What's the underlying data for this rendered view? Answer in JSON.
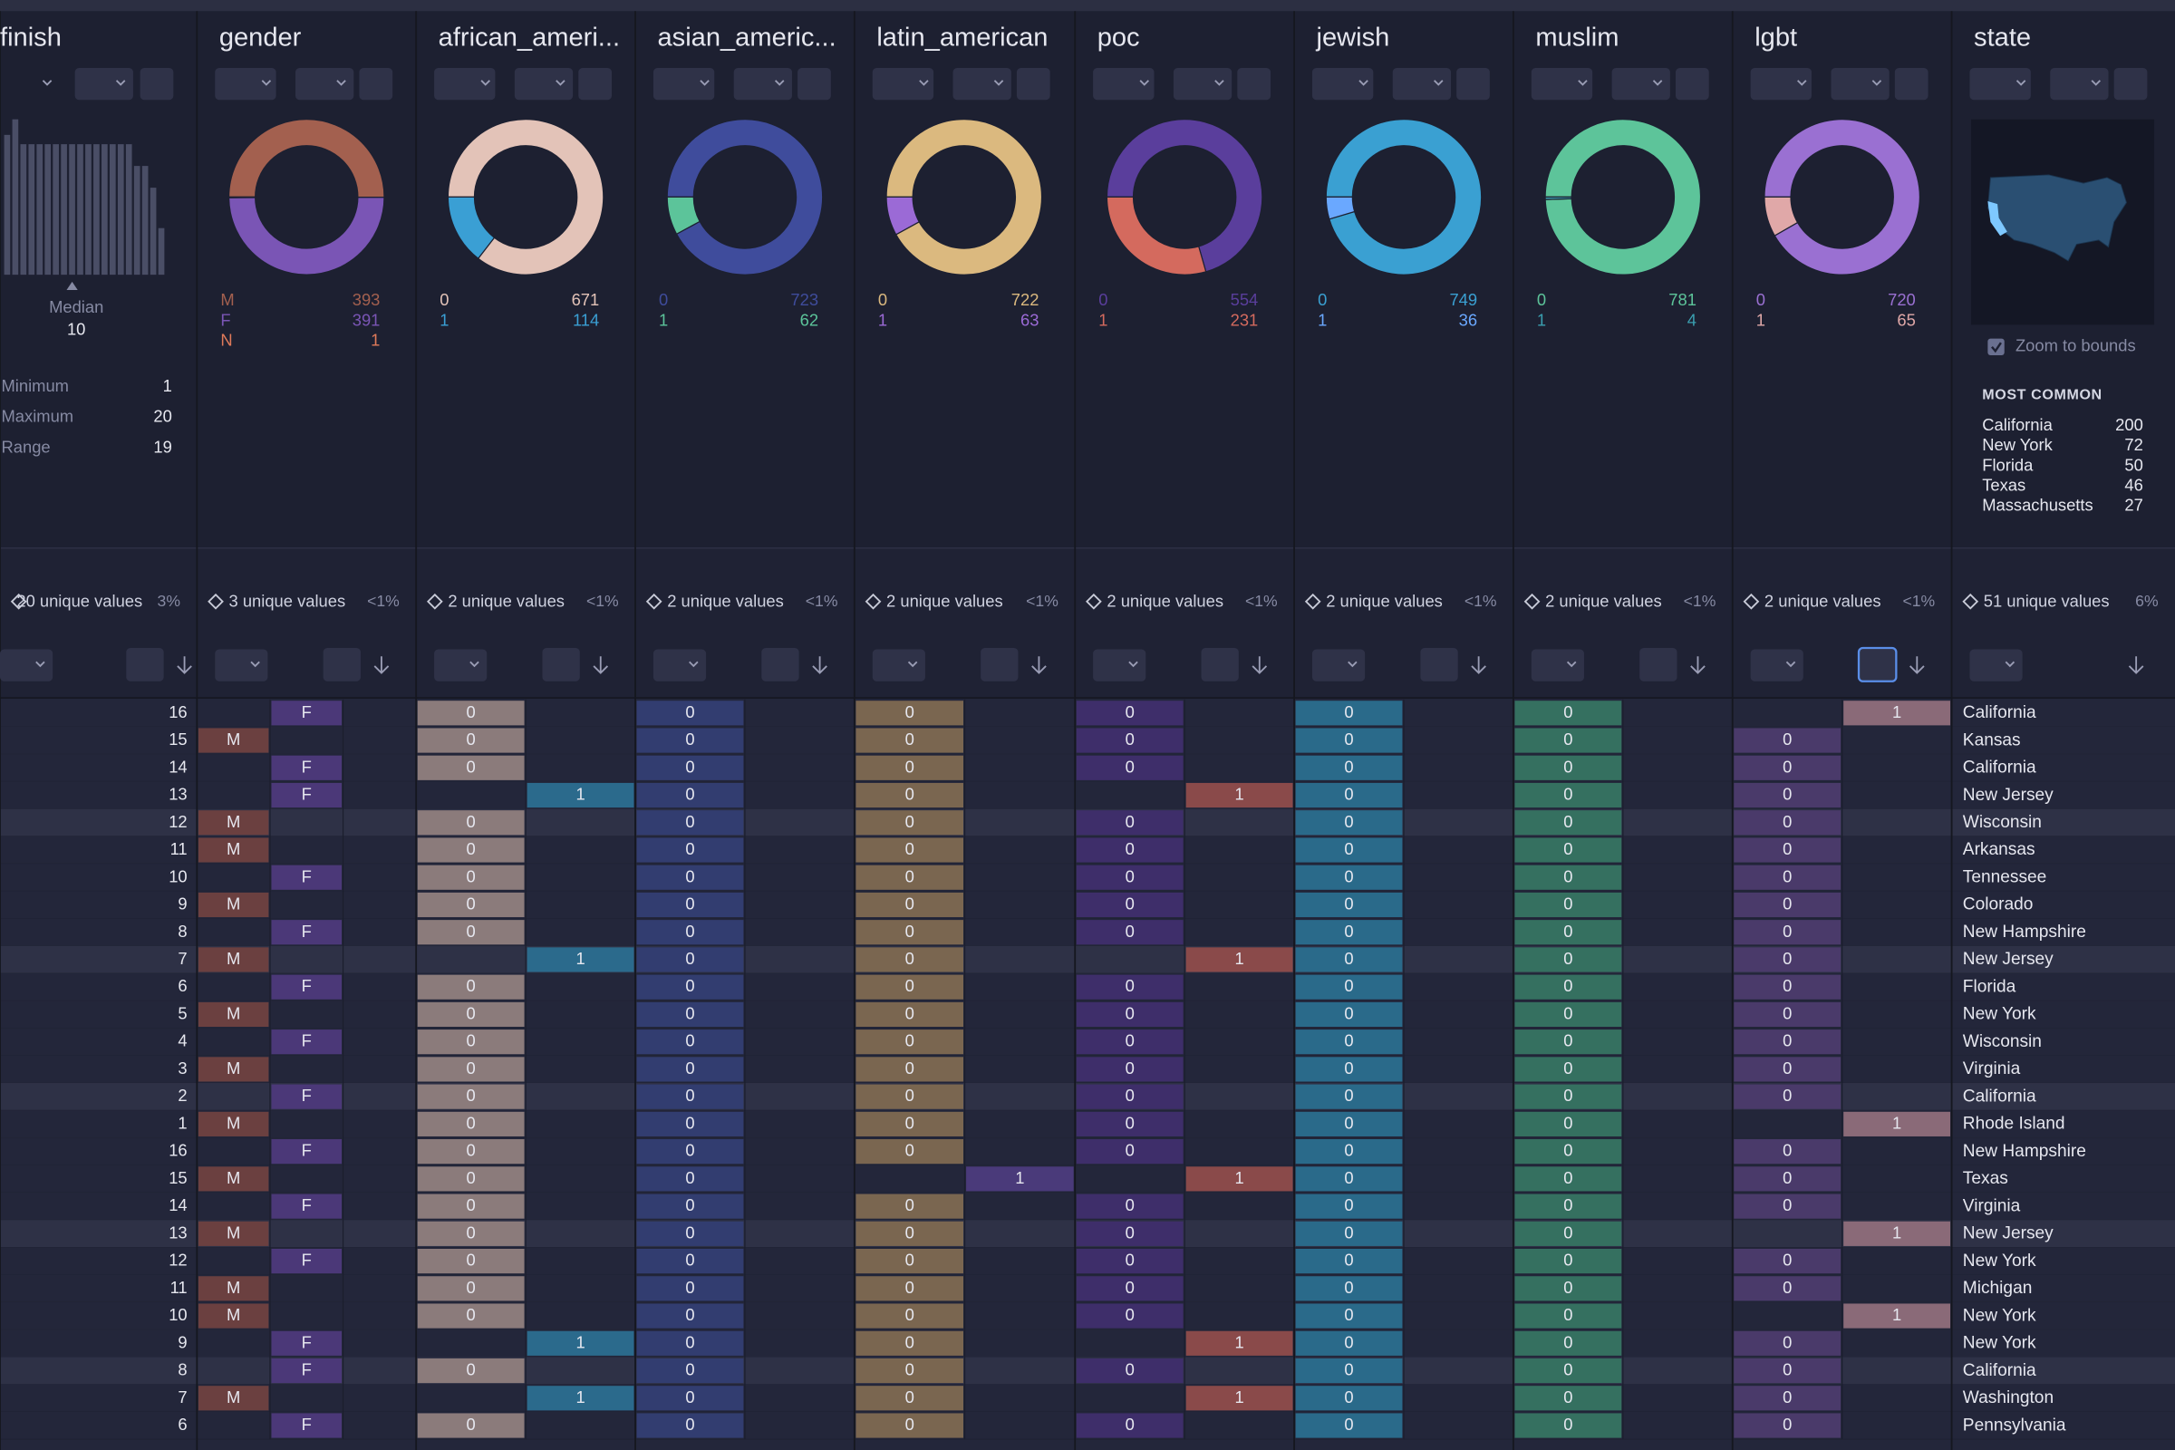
{
  "columns": [
    {
      "name": "finish",
      "histogram": [
        45,
        50,
        42,
        42,
        42,
        42,
        42,
        42,
        42,
        42,
        42,
        42,
        42,
        42,
        42,
        42,
        35,
        35,
        28,
        15
      ],
      "hist_color": "#4a4e66",
      "median_label": "Median",
      "median": 10,
      "stats": [
        {
          "label": "Minimum",
          "value": 1
        },
        {
          "label": "Maximum",
          "value": 20
        },
        {
          "label": "Range",
          "value": 19
        }
      ],
      "unique": "20 unique values",
      "pct": "3%"
    },
    {
      "name": "gender",
      "legend": [
        {
          "label": "M",
          "count": 393,
          "color": "#a3604f",
          "cell": "#6b4040"
        },
        {
          "label": "F",
          "count": 391,
          "color": "#7a55b5",
          "cell": "#4b3878"
        },
        {
          "label": "N",
          "count": 1,
          "color": "#e07a5a",
          "cell": "#8a4a3a"
        }
      ],
      "unique": "3 unique values",
      "pct": "<1%"
    },
    {
      "name": "african_ameri...",
      "legend": [
        {
          "label": 0,
          "count": 671,
          "color": "#e3c3b8",
          "cell": "#8b7b7b"
        },
        {
          "label": 1,
          "count": 114,
          "color": "#3a9fd4",
          "cell": "#2b6a8c"
        }
      ],
      "unique": "2 unique values",
      "pct": "<1%"
    },
    {
      "name": "asian_americ...",
      "legend": [
        {
          "label": 0,
          "count": 723,
          "color": "#3f4c9c",
          "cell": "#323d70"
        },
        {
          "label": 1,
          "count": 62,
          "color": "#5cc49a",
          "cell": "#2f6a58"
        }
      ],
      "unique": "2 unique values",
      "pct": "<1%"
    },
    {
      "name": "latin_american",
      "legend": [
        {
          "label": 0,
          "count": 722,
          "color": "#dbb97f",
          "cell": "#7a6650"
        },
        {
          "label": 1,
          "count": 63,
          "color": "#9b6ad6",
          "cell": "#4a3a7a"
        }
      ],
      "unique": "2 unique values",
      "pct": "<1%"
    },
    {
      "name": "poc",
      "legend": [
        {
          "label": 0,
          "count": 554,
          "color": "#5a3e9c",
          "cell": "#3e2e6a"
        },
        {
          "label": 1,
          "count": 231,
          "color": "#d46a5e",
          "cell": "#8a4a4a"
        }
      ],
      "unique": "2 unique values",
      "pct": "<1%"
    },
    {
      "name": "jewish",
      "legend": [
        {
          "label": 0,
          "count": 749,
          "color": "#3aa0d2",
          "cell": "#2a6a8a"
        },
        {
          "label": 1,
          "count": 36,
          "color": "#6aa8ff",
          "cell": "#35589a"
        }
      ],
      "unique": "2 unique values",
      "pct": "<1%"
    },
    {
      "name": "muslim",
      "legend": [
        {
          "label": 0,
          "count": 781,
          "color": "#5dc49a",
          "cell": "#357060"
        },
        {
          "label": 1,
          "count": 4,
          "color": "#3a9fb0",
          "cell": "#2a6070"
        }
      ],
      "unique": "2 unique values",
      "pct": "<1%"
    },
    {
      "name": "lgbt",
      "legend": [
        {
          "label": 0,
          "count": 720,
          "color": "#9a70d2",
          "cell": "#4a3a6a"
        },
        {
          "label": 1,
          "count": 65,
          "color": "#e0a8a8",
          "cell": "#8a6a78"
        }
      ],
      "unique": "2 unique values",
      "pct": "<1%"
    },
    {
      "name": "state",
      "zoom": "Zoom to bounds",
      "most_common_title": "MOST COMMON",
      "most_common": [
        {
          "label": "California",
          "count": 200
        },
        {
          "label": "New York",
          "count": 72
        },
        {
          "label": "Florida",
          "count": 50
        },
        {
          "label": "Texas",
          "count": 46
        },
        {
          "label": "Massachusetts",
          "count": 27
        }
      ],
      "unique": "51 unique values",
      "pct": "6%"
    }
  ],
  "rows": [
    [
      16,
      "F",
      0,
      0,
      0,
      0,
      0,
      0,
      1,
      "California"
    ],
    [
      15,
      "M",
      0,
      0,
      0,
      0,
      0,
      0,
      0,
      "Kansas"
    ],
    [
      14,
      "F",
      0,
      0,
      0,
      0,
      0,
      0,
      0,
      "California"
    ],
    [
      13,
      "F",
      1,
      0,
      0,
      1,
      0,
      0,
      0,
      "New Jersey"
    ],
    [
      12,
      "M",
      0,
      0,
      0,
      0,
      0,
      0,
      0,
      "Wisconsin"
    ],
    [
      11,
      "M",
      0,
      0,
      0,
      0,
      0,
      0,
      0,
      "Arkansas"
    ],
    [
      10,
      "F",
      0,
      0,
      0,
      0,
      0,
      0,
      0,
      "Tennessee"
    ],
    [
      9,
      "M",
      0,
      0,
      0,
      0,
      0,
      0,
      0,
      "Colorado"
    ],
    [
      8,
      "F",
      0,
      0,
      0,
      0,
      0,
      0,
      0,
      "New Hampshire"
    ],
    [
      7,
      "M",
      1,
      0,
      0,
      1,
      0,
      0,
      0,
      "New Jersey"
    ],
    [
      6,
      "F",
      0,
      0,
      0,
      0,
      0,
      0,
      0,
      "Florida"
    ],
    [
      5,
      "M",
      0,
      0,
      0,
      0,
      0,
      0,
      0,
      "New York"
    ],
    [
      4,
      "F",
      0,
      0,
      0,
      0,
      0,
      0,
      0,
      "Wisconsin"
    ],
    [
      3,
      "M",
      0,
      0,
      0,
      0,
      0,
      0,
      0,
      "Virginia"
    ],
    [
      2,
      "F",
      0,
      0,
      0,
      0,
      0,
      0,
      0,
      "California"
    ],
    [
      1,
      "M",
      0,
      0,
      0,
      0,
      0,
      0,
      1,
      "Rhode Island"
    ],
    [
      16,
      "F",
      0,
      0,
      0,
      0,
      0,
      0,
      0,
      "New Hampshire"
    ],
    [
      15,
      "M",
      0,
      0,
      1,
      1,
      0,
      0,
      0,
      "Texas"
    ],
    [
      14,
      "F",
      0,
      0,
      0,
      0,
      0,
      0,
      0,
      "Virginia"
    ],
    [
      13,
      "M",
      0,
      0,
      0,
      0,
      0,
      0,
      1,
      "New Jersey"
    ],
    [
      12,
      "F",
      0,
      0,
      0,
      0,
      0,
      0,
      0,
      "New York"
    ],
    [
      11,
      "M",
      0,
      0,
      0,
      0,
      0,
      0,
      0,
      "Michigan"
    ],
    [
      10,
      "M",
      0,
      0,
      0,
      0,
      0,
      0,
      1,
      "New York"
    ],
    [
      9,
      "F",
      1,
      0,
      0,
      1,
      0,
      0,
      0,
      "New York"
    ],
    [
      8,
      "F",
      0,
      0,
      0,
      0,
      0,
      0,
      0,
      "California"
    ],
    [
      7,
      "M",
      1,
      0,
      0,
      1,
      0,
      0,
      0,
      "Washington"
    ],
    [
      6,
      "F",
      0,
      0,
      0,
      0,
      0,
      0,
      0,
      "Pennsylvania"
    ]
  ]
}
